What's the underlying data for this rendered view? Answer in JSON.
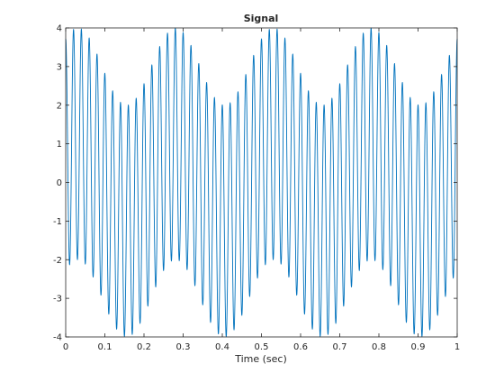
{
  "chart_data": {
    "type": "line",
    "title": "Signal",
    "xlabel": "Time (sec)",
    "ylabel": "",
    "xlim": [
      0,
      1
    ],
    "ylim": [
      -4,
      4
    ],
    "xticks": [
      0,
      0.1,
      0.2,
      0.3,
      0.4,
      0.5,
      0.6,
      0.7,
      0.8,
      0.9,
      1
    ],
    "xtick_labels": [
      "0",
      "0.1",
      "0.2",
      "0.3",
      "0.4",
      "0.5",
      "0.6",
      "0.7",
      "0.8",
      "0.9",
      "1"
    ],
    "yticks": [
      -4,
      -3,
      -2,
      -1,
      0,
      1,
      2,
      3,
      4
    ],
    "ytick_labels": [
      "-4",
      "-3",
      "-2",
      "-1",
      "0",
      "1",
      "2",
      "3",
      "4"
    ],
    "grid": false,
    "line_color": "#0072BD",
    "series": [
      {
        "name": "",
        "model": "y = 3*cos(2*pi*50*t) + sin(2*pi*4*t + 0.8)",
        "x": [
          0.0,
          0.01,
          0.02,
          0.03,
          0.04,
          0.05,
          0.06,
          0.07,
          0.08,
          0.09,
          0.1,
          0.11,
          0.12,
          0.13,
          0.14,
          0.15,
          0.16,
          0.17,
          0.18,
          0.19,
          0.2,
          0.21,
          0.22,
          0.23,
          0.24,
          0.25,
          0.26,
          0.27,
          0.28,
          0.29,
          0.3,
          0.31,
          0.32,
          0.33,
          0.34,
          0.35,
          0.36,
          0.37,
          0.38,
          0.39,
          0.4,
          0.41,
          0.42,
          0.43,
          0.44,
          0.45,
          0.46,
          0.47,
          0.48,
          0.49,
          0.5,
          0.51,
          0.52,
          0.53,
          0.54,
          0.55,
          0.56,
          0.57,
          0.58,
          0.59,
          0.6,
          0.61,
          0.62,
          0.63,
          0.64,
          0.65,
          0.66,
          0.67,
          0.68,
          0.69,
          0.7,
          0.71,
          0.72,
          0.73,
          0.74,
          0.75,
          0.76,
          0.77,
          0.78,
          0.79,
          0.8,
          0.81,
          0.82,
          0.83,
          0.84,
          0.85,
          0.86,
          0.87,
          0.88,
          0.89,
          0.9,
          0.91,
          0.92,
          0.93,
          0.94,
          0.95,
          0.96,
          0.97,
          0.98,
          0.99,
          1.0
        ],
        "y": [
          3.72,
          -2.2,
          3.89,
          -2.03,
          3.86,
          -2.14,
          3.67,
          -2.49,
          3.34,
          -2.94,
          2.91,
          -3.43,
          2.45,
          -3.87,
          2.02,
          -4.17,
          1.69,
          -4.33,
          1.51,
          -4.3,
          1.5,
          -4.1,
          1.66,
          -3.74,
          1.98,
          -3.27,
          2.42,
          -2.77,
          2.89,
          -2.31,
          3.33,
          -1.96,
          3.67,
          -1.77,
          3.86,
          -1.76,
          3.87,
          -1.93,
          3.71,
          -2.25,
          3.41,
          -2.67,
          3.0,
          -3.13,
          2.55,
          -3.58,
          2.1,
          -3.95,
          1.73,
          -4.19,
          1.52,
          -4.28,
          1.5,
          -4.18,
          1.66,
          -3.93,
          1.97,
          -3.54,
          2.39,
          -3.08,
          2.87,
          -2.6,
          3.32,
          -2.17,
          3.67,
          -1.86,
          3.86,
          -1.73,
          3.88,
          -1.8,
          3.72,
          -2.06,
          3.41,
          -2.46,
          3.0,
          -2.93,
          2.54,
          -3.4,
          2.09,
          -3.81,
          1.71,
          -4.1,
          1.48,
          -4.23,
          1.43,
          -4.18,
          1.58,
          -3.96,
          1.89,
          -3.61,
          2.32,
          -3.17,
          2.8,
          -2.7,
          3.26,
          -2.26,
          3.63,
          -1.94,
          3.83,
          -1.78,
          3.86
        ]
      }
    ]
  }
}
